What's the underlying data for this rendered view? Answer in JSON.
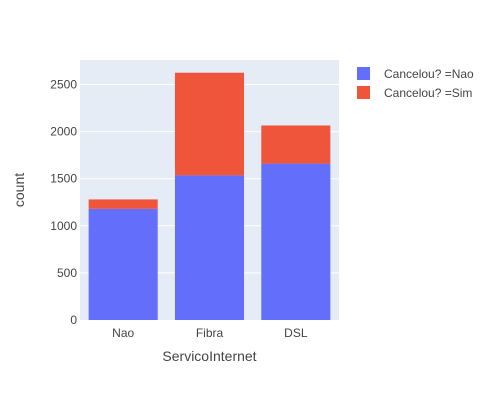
{
  "chart_data": {
    "type": "bar",
    "barmode": "stack",
    "categories": [
      "Nao",
      "Fibra",
      "DSL"
    ],
    "series": [
      {
        "name": "Cancelou? =Nao",
        "values": [
          1180,
          1535,
          1660
        ],
        "color": "#636efa"
      },
      {
        "name": "Cancelou? =Sim",
        "values": [
          100,
          1090,
          405
        ],
        "color": "#ef553b"
      }
    ],
    "xlabel": "ServicoInternet",
    "ylabel": "count",
    "ylim": [
      0,
      2760
    ],
    "yticks": [
      0,
      500,
      1000,
      1500,
      2000,
      2500
    ],
    "grid": true,
    "legend_position": "top-right",
    "plot_background": "#e5ecf6"
  }
}
